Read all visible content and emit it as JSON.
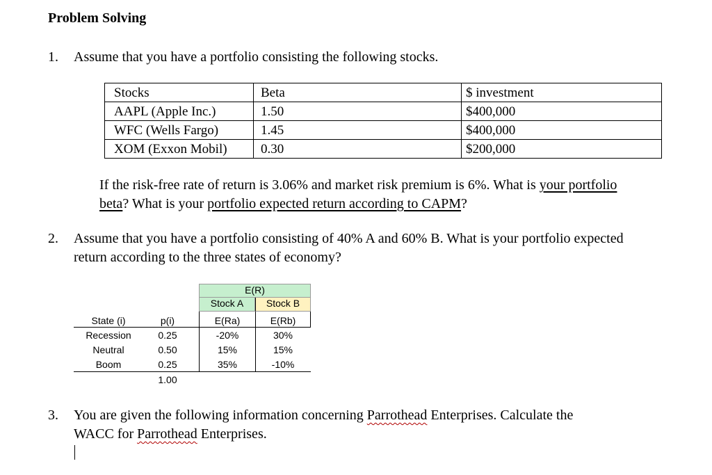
{
  "heading": "Problem Solving",
  "q1": {
    "number": "1.",
    "text": "Assume that you have a portfolio consisting the following stocks.",
    "table": {
      "headers": [
        "Stocks",
        "Beta",
        "$ investment"
      ],
      "rows": [
        [
          "AAPL (Apple Inc.)",
          "1.50",
          "$400,000"
        ],
        [
          "WFC (Wells Fargo)",
          "1.45",
          "$400,000"
        ],
        [
          "XOM (Exxon Mobil)",
          "0.30",
          "$200,000"
        ]
      ]
    },
    "followup_line1_a": "If the risk-free rate of return is 3.06% and market risk premium is 6%.  What is ",
    "followup_line1_u": "your portfolio",
    "followup_line2_u1": "beta",
    "followup_line2_a": "? What is your ",
    "followup_line2_u2": "portfolio expected return according to CAPM",
    "followup_line2_b": "?"
  },
  "q2": {
    "number": "2.",
    "line1": "Assume that you have a portfolio consisting of 40% A and 60% B. What is your portfolio expected",
    "line2": "return according to the three states of economy?",
    "table": {
      "er_header": "E(R)",
      "stock_a": "Stock A",
      "stock_b": "Stock B",
      "col_headers": [
        "State (i)",
        "p(i)",
        "E(Ra)",
        "E(Rb)"
      ],
      "rows": [
        [
          "Recession",
          "0.25",
          "-20%",
          "30%"
        ],
        [
          "Neutral",
          "0.50",
          "15%",
          "15%"
        ],
        [
          "Boom",
          "0.25",
          "35%",
          "-10%"
        ]
      ],
      "p_total": "1.00"
    },
    "colors": {
      "stock_a_fill": "#c6efce",
      "stock_b_fill": "#fff2c0"
    }
  },
  "q3": {
    "number": "3.",
    "line1_a": "You are given the following information concerning ",
    "line1_sq": "Parrothead",
    "line1_b": " Enterprises. Calculate the",
    "line2_a": "WACC for ",
    "line2_sq": "Parrothead",
    "line2_b": " Enterprises."
  }
}
